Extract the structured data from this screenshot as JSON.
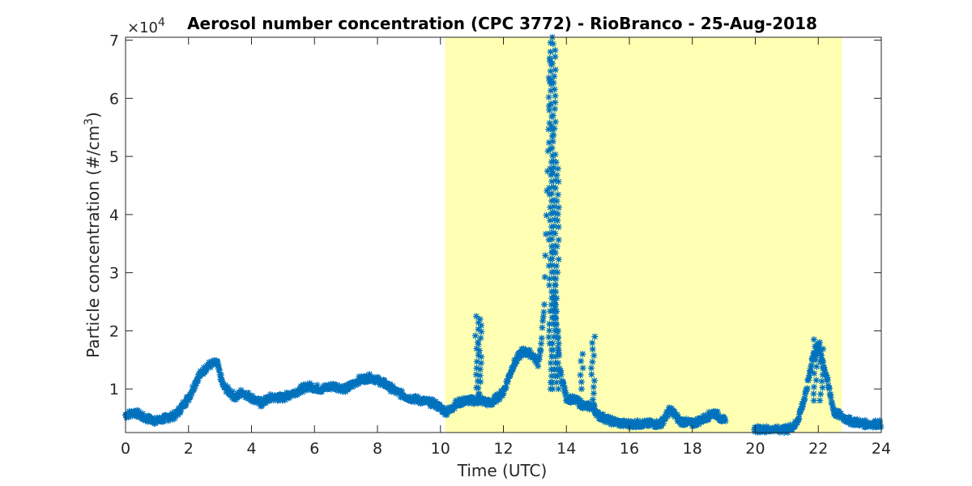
{
  "chart_data": {
    "type": "scatter",
    "title": "Aerosol number concentration (CPC 3772) - RioBranco - 25-Aug-2018",
    "xlabel": "Time (UTC)",
    "ylabel_main": "Particle concentration (#/cm",
    "ylabel_sup": "3",
    "ylabel_tail": ")",
    "y_multiplier_base": "×10",
    "y_multiplier_exp": "4",
    "xlim": [
      0,
      24
    ],
    "ylim": [
      0.25,
      7.05
    ],
    "xticks": [
      0,
      2,
      4,
      6,
      8,
      10,
      12,
      14,
      16,
      18,
      20,
      22,
      24
    ],
    "xtick_labels": [
      "0",
      "2",
      "4",
      "6",
      "8",
      "10",
      "12",
      "14",
      "16",
      "18",
      "20",
      "22",
      "24"
    ],
    "yticks": [
      1,
      2,
      3,
      4,
      5,
      6,
      7
    ],
    "ytick_labels": [
      "1",
      "2",
      "3",
      "4",
      "5",
      "6",
      "7"
    ],
    "grid": false,
    "marker": "asterisk",
    "series_color": "#0072BD",
    "highlight_band": {
      "x_start": 10.15,
      "x_end": 22.75,
      "color": "#FFFFB3"
    },
    "series": [
      {
        "x": [
          0,
          0.3,
          0.6,
          1,
          1.3,
          1.6,
          2,
          2.3,
          2.6,
          2.9,
          3.1,
          3.5,
          3.7,
          4,
          4.3,
          4.6,
          5,
          5.4,
          5.8,
          6.2,
          6.6,
          7,
          7.4,
          7.8,
          8.2,
          8.6,
          9,
          9.4,
          9.8,
          10.2,
          10.5,
          10.8,
          11.1,
          11.3,
          11.6,
          12,
          12.3,
          12.6,
          12.9,
          13.1,
          13.2,
          13.3,
          13.5,
          13.6,
          13.8,
          14,
          14.3,
          14.6,
          14.85,
          15,
          15.4,
          15.8,
          16.2,
          16.6,
          17,
          17.3,
          17.6,
          18,
          18.4,
          18.7,
          19.1,
          19.9,
          20.3,
          20.7,
          21,
          21.3,
          21.6,
          21.8,
          22,
          22.2,
          22.5,
          23,
          23.5,
          24
        ],
        "y": [
          0.55,
          0.6,
          0.5,
          0.45,
          0.5,
          0.55,
          0.85,
          1.2,
          1.4,
          1.45,
          1.05,
          0.85,
          0.95,
          0.85,
          0.75,
          0.85,
          0.85,
          0.95,
          1.05,
          1.0,
          1.05,
          1.0,
          1.15,
          1.2,
          1.1,
          0.95,
          0.85,
          0.8,
          0.75,
          0.6,
          0.75,
          0.8,
          0.8,
          0.8,
          0.75,
          0.95,
          1.4,
          1.65,
          1.6,
          1.45,
          1.75,
          2.5,
          7.0,
          2.6,
          1.3,
          0.85,
          0.8,
          0.7,
          0.7,
          0.55,
          0.45,
          0.4,
          0.4,
          0.4,
          0.4,
          0.65,
          0.45,
          0.4,
          0.5,
          0.6,
          0.4,
          0.3,
          0.3,
          0.3,
          0.3,
          0.4,
          0.9,
          1.5,
          1.75,
          1.35,
          0.6,
          0.45,
          0.4,
          0.4
        ]
      }
    ],
    "spikes": [
      {
        "x": 11.15,
        "ymin": 0.8,
        "ymax": 2.25
      },
      {
        "x": 11.25,
        "ymin": 0.8,
        "ymax": 2.2
      },
      {
        "x": 13.5,
        "ymin": 1.0,
        "ymax": 6.8
      },
      {
        "x": 13.6,
        "ymin": 1.0,
        "ymax": 7.05
      },
      {
        "x": 13.7,
        "ymin": 1.0,
        "ymax": 4.9
      },
      {
        "x": 14.5,
        "ymin": 1.0,
        "ymax": 1.6
      },
      {
        "x": 14.85,
        "ymin": 0.6,
        "ymax": 1.9
      },
      {
        "x": 21.9,
        "ymin": 0.8,
        "ymax": 1.85
      },
      {
        "x": 22.1,
        "ymin": 0.8,
        "ymax": 1.8
      }
    ]
  }
}
